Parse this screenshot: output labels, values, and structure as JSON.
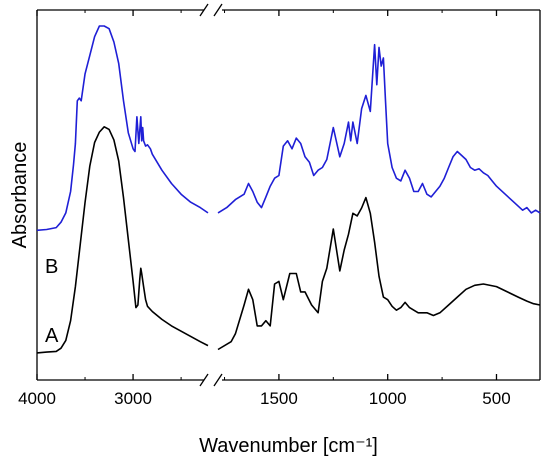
{
  "chart_data": {
    "type": "line",
    "title": "",
    "xlabel": "Wavenumber [cm⁻¹]",
    "ylabel": "Absorbance",
    "grid": false,
    "legend": "none",
    "axis_break": {
      "between": [
        2220,
        1780
      ]
    },
    "xlim": [
      4000,
      300
    ],
    "ylim": [
      0,
      1
    ],
    "xticks": [
      4000,
      3000,
      1500,
      1000,
      500
    ],
    "xtick_labels": [
      "4000",
      "3000",
      "1500",
      "1000",
      "500"
    ],
    "series": [
      {
        "name": "A",
        "color": "#000000",
        "segments": [
          {
            "x": [
              4000,
              3900,
              3800,
              3750,
              3700,
              3650,
              3600,
              3550,
              3500,
              3450,
              3400,
              3350,
              3300,
              3250,
              3200,
              3150,
              3100,
              3050,
              3000,
              2970,
              2950,
              2930,
              2920,
              2910,
              2890,
              2870,
              2850,
              2800,
              2700,
              2600,
              2500,
              2400,
              2300,
              2220
            ],
            "y": [
              0.027,
              0.03,
              0.033,
              0.045,
              0.075,
              0.15,
              0.28,
              0.44,
              0.6,
              0.74,
              0.83,
              0.87,
              0.89,
              0.88,
              0.84,
              0.76,
              0.62,
              0.46,
              0.3,
              0.2,
              0.21,
              0.31,
              0.35,
              0.33,
              0.28,
              0.23,
              0.205,
              0.185,
              0.155,
              0.13,
              0.11,
              0.09,
              0.07,
              0.055
            ]
          },
          {
            "x": [
              1780,
              1720,
              1700,
              1660,
              1640,
              1620,
              1600,
              1580,
              1560,
              1540,
              1520,
              1500,
              1480,
              1450,
              1420,
              1400,
              1380,
              1350,
              1320,
              1300,
              1280,
              1250,
              1220,
              1200,
              1180,
              1160,
              1140,
              1120,
              1100,
              1080,
              1060,
              1040,
              1020,
              1000,
              980,
              960,
              940,
              920,
              900,
              860,
              820,
              790,
              760,
              720,
              680,
              640,
              600,
              560,
              500,
              450,
              400,
              360,
              330,
              300
            ],
            "y": [
              0.04,
              0.07,
              0.1,
              0.21,
              0.27,
              0.23,
              0.13,
              0.13,
              0.15,
              0.13,
              0.29,
              0.3,
              0.23,
              0.33,
              0.33,
              0.26,
              0.26,
              0.21,
              0.18,
              0.3,
              0.35,
              0.5,
              0.34,
              0.42,
              0.48,
              0.56,
              0.55,
              0.58,
              0.62,
              0.56,
              0.45,
              0.32,
              0.24,
              0.23,
              0.205,
              0.19,
              0.2,
              0.22,
              0.2,
              0.18,
              0.18,
              0.17,
              0.18,
              0.21,
              0.24,
              0.27,
              0.285,
              0.29,
              0.28,
              0.26,
              0.24,
              0.225,
              0.215,
              0.21
            ]
          }
        ]
      },
      {
        "name": "B",
        "color": "#1f1fd6",
        "segments": [
          {
            "x": [
              4000,
              3900,
              3800,
              3750,
              3700,
              3650,
              3620,
              3600,
              3580,
              3560,
              3540,
              3500,
              3450,
              3400,
              3350,
              3300,
              3250,
              3200,
              3150,
              3100,
              3050,
              3000,
              2980,
              2960,
              2940,
              2930,
              2920,
              2910,
              2900,
              2890,
              2870,
              2850,
              2820,
              2800,
              2700,
              2600,
              2500,
              2400,
              2300,
              2220
            ],
            "y": [
              0.235,
              0.238,
              0.245,
              0.265,
              0.3,
              0.38,
              0.48,
              0.56,
              0.72,
              0.73,
              0.72,
              0.82,
              0.89,
              0.96,
              1.0,
              1.0,
              0.99,
              0.94,
              0.86,
              0.72,
              0.6,
              0.54,
              0.53,
              0.66,
              0.56,
              0.61,
              0.66,
              0.57,
              0.62,
              0.57,
              0.55,
              0.555,
              0.54,
              0.52,
              0.46,
              0.41,
              0.37,
              0.34,
              0.32,
              0.3
            ]
          },
          {
            "x": [
              1780,
              1740,
              1700,
              1660,
              1640,
              1620,
              1600,
              1580,
              1560,
              1540,
              1520,
              1500,
              1480,
              1460,
              1440,
              1420,
              1400,
              1380,
              1360,
              1340,
              1320,
              1300,
              1280,
              1250,
              1220,
              1200,
              1180,
              1170,
              1160,
              1140,
              1120,
              1100,
              1080,
              1060,
              1050,
              1040,
              1030,
              1020,
              1010,
              1000,
              980,
              960,
              940,
              920,
              900,
              880,
              860,
              840,
              820,
              800,
              780,
              760,
              740,
              720,
              700,
              680,
              660,
              640,
              620,
              600,
              580,
              560,
              540,
              520,
              500,
              460,
              420,
              380,
              360,
              340,
              320,
              300
            ],
            "y": [
              0.3,
              0.32,
              0.35,
              0.37,
              0.41,
              0.38,
              0.34,
              0.32,
              0.36,
              0.4,
              0.43,
              0.44,
              0.55,
              0.57,
              0.54,
              0.58,
              0.56,
              0.51,
              0.49,
              0.44,
              0.46,
              0.47,
              0.5,
              0.62,
              0.51,
              0.56,
              0.64,
              0.57,
              0.64,
              0.56,
              0.69,
              0.74,
              0.68,
              0.93,
              0.78,
              0.92,
              0.85,
              0.88,
              0.72,
              0.56,
              0.47,
              0.43,
              0.42,
              0.46,
              0.43,
              0.38,
              0.38,
              0.41,
              0.37,
              0.36,
              0.38,
              0.4,
              0.43,
              0.47,
              0.51,
              0.53,
              0.515,
              0.5,
              0.47,
              0.46,
              0.465,
              0.45,
              0.44,
              0.42,
              0.4,
              0.37,
              0.34,
              0.31,
              0.32,
              0.3,
              0.31,
              0.3
            ]
          }
        ]
      }
    ],
    "annotations": [
      {
        "text": "A",
        "series": "A"
      },
      {
        "text": "B",
        "series": "B"
      }
    ]
  }
}
